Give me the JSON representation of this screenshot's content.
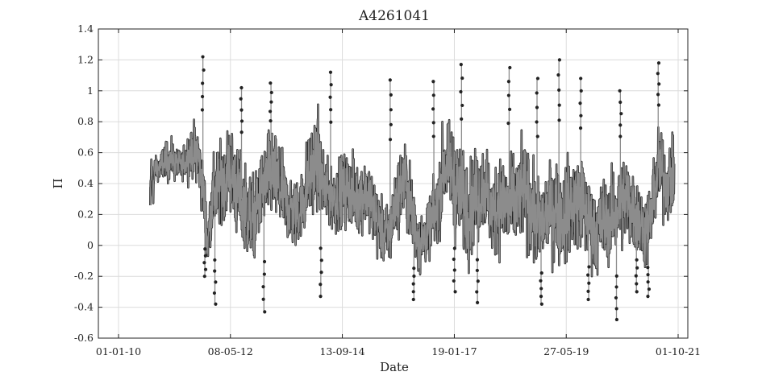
{
  "chart_data": {
    "type": "line",
    "title": "A4261041",
    "xlabel": "Date",
    "ylabel": "Π",
    "xlim": [
      "2010-01-01",
      "2021-10-01"
    ],
    "ylim": [
      -0.6,
      1.4
    ],
    "x_ticks": [
      "01-01-10",
      "08-05-12",
      "13-09-14",
      "19-01-17",
      "27-05-19",
      "01-10-21"
    ],
    "y_ticks": [
      "-0.6",
      "-0.4",
      "-0.2",
      "0",
      "0.2",
      "0.4",
      "0.6",
      "0.8",
      "1",
      "1.2",
      "1.4"
    ],
    "grid": true,
    "series": [
      {
        "color": "#8c8c8c",
        "marker_color": "#222222",
        "x": [
          "2010-09-01",
          "2010-09-10",
          "2010-09-20",
          "2010-10-10",
          "2010-11-15",
          "2011-01-01",
          "2011-03-01",
          "2011-05-01",
          "2011-07-01",
          "2011-09-01",
          "2011-10-20",
          "2011-11-15",
          "2011-12-20",
          "2012-01-20",
          "2012-03-01",
          "2012-05-01",
          "2012-07-01",
          "2012-09-01",
          "2012-11-01",
          "2013-01-01",
          "2013-03-01",
          "2013-05-01",
          "2013-07-01",
          "2013-09-01",
          "2013-11-01",
          "2014-01-01",
          "2014-03-01",
          "2014-05-01",
          "2014-07-01",
          "2014-09-01",
          "2014-11-01",
          "2015-01-01",
          "2015-03-01",
          "2015-05-01",
          "2015-07-01",
          "2015-09-01",
          "2015-11-01",
          "2016-01-01",
          "2016-03-01",
          "2016-05-01",
          "2016-07-01",
          "2016-09-01",
          "2016-11-01",
          "2017-01-01",
          "2017-03-01",
          "2017-05-01",
          "2017-07-01",
          "2017-09-01",
          "2017-11-01",
          "2018-01-01",
          "2018-03-01",
          "2018-05-01",
          "2018-07-01",
          "2018-09-01",
          "2018-11-01",
          "2019-01-01",
          "2019-03-01",
          "2019-05-01",
          "2019-07-01",
          "2019-09-01",
          "2019-11-01",
          "2020-01-01",
          "2020-03-01",
          "2020-05-01",
          "2020-07-01",
          "2020-09-01",
          "2020-11-01",
          "2021-01-01",
          "2021-03-01",
          "2021-05-01",
          "2021-07-01",
          "2021-09-01"
        ],
        "center": [
          0.25,
          0.55,
          0.35,
          0.5,
          0.5,
          0.55,
          0.55,
          0.5,
          0.6,
          0.6,
          0.3,
          0.0,
          0.3,
          0.35,
          0.4,
          0.5,
          0.35,
          0.25,
          0.15,
          0.35,
          0.45,
          0.4,
          0.3,
          0.2,
          0.25,
          0.45,
          0.55,
          0.35,
          0.3,
          0.35,
          0.35,
          0.3,
          0.35,
          0.25,
          0.1,
          0.05,
          0.3,
          0.45,
          0.2,
          0.0,
          0.1,
          0.2,
          0.55,
          0.45,
          0.3,
          0.25,
          0.3,
          0.4,
          0.2,
          0.3,
          0.25,
          0.25,
          0.35,
          0.25,
          0.1,
          0.2,
          0.25,
          0.2,
          0.25,
          0.3,
          0.2,
          0.1,
          0.15,
          0.15,
          0.25,
          0.3,
          0.25,
          0.1,
          0.15,
          0.5,
          0.4,
          0.45
        ],
        "spread": [
          0.15,
          0.1,
          0.15,
          0.12,
          0.12,
          0.15,
          0.15,
          0.12,
          0.2,
          0.25,
          0.25,
          0.2,
          0.3,
          0.35,
          0.35,
          0.35,
          0.35,
          0.35,
          0.35,
          0.35,
          0.35,
          0.35,
          0.3,
          0.3,
          0.3,
          0.35,
          0.4,
          0.3,
          0.25,
          0.3,
          0.3,
          0.3,
          0.3,
          0.3,
          0.25,
          0.25,
          0.3,
          0.35,
          0.3,
          0.25,
          0.25,
          0.3,
          0.4,
          0.4,
          0.4,
          0.4,
          0.4,
          0.35,
          0.35,
          0.4,
          0.4,
          0.4,
          0.4,
          0.4,
          0.35,
          0.35,
          0.4,
          0.4,
          0.4,
          0.4,
          0.35,
          0.35,
          0.35,
          0.35,
          0.35,
          0.35,
          0.35,
          0.3,
          0.3,
          0.35,
          0.3,
          0.3
        ],
        "peaks": [
          {
            "x": "2011-10-10",
            "y": 1.22
          },
          {
            "x": "2011-10-25",
            "y": -0.2
          },
          {
            "x": "2012-01-10",
            "y": -0.38
          },
          {
            "x": "2012-08-01",
            "y": 1.02
          },
          {
            "x": "2013-01-20",
            "y": -0.43
          },
          {
            "x": "2013-03-15",
            "y": 1.05
          },
          {
            "x": "2014-06-15",
            "y": 1.12
          },
          {
            "x": "2014-04-01",
            "y": -0.33
          },
          {
            "x": "2015-09-15",
            "y": 1.07
          },
          {
            "x": "2016-03-15",
            "y": -0.35
          },
          {
            "x": "2016-08-15",
            "y": 1.06
          },
          {
            "x": "2017-03-15",
            "y": 1.17
          },
          {
            "x": "2017-01-20",
            "y": -0.3
          },
          {
            "x": "2017-07-15",
            "y": -0.37
          },
          {
            "x": "2018-03-15",
            "y": 1.15
          },
          {
            "x": "2018-10-15",
            "y": 1.08
          },
          {
            "x": "2018-11-15",
            "y": -0.38
          },
          {
            "x": "2019-04-01",
            "y": 1.2
          },
          {
            "x": "2019-09-15",
            "y": 1.08
          },
          {
            "x": "2019-11-15",
            "y": -0.35
          },
          {
            "x": "2020-06-15",
            "y": -0.48
          },
          {
            "x": "2020-07-15",
            "y": 1.0
          },
          {
            "x": "2020-11-15",
            "y": -0.3
          },
          {
            "x": "2021-02-15",
            "y": -0.33
          },
          {
            "x": "2021-05-01",
            "y": 1.18
          }
        ]
      }
    ]
  }
}
